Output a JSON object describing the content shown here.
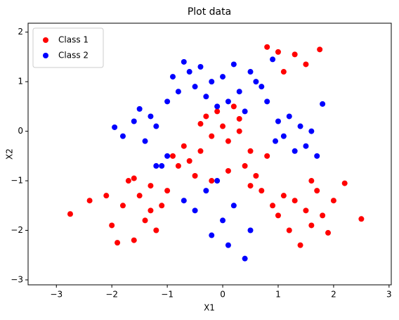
{
  "chart_data": {
    "type": "scatter",
    "title": "Plot data",
    "x_label": "X1",
    "y_label": "X2",
    "xlim": [
      -3.51,
      3.04
    ],
    "ylim": [
      -3.1,
      2.18
    ],
    "xticks": [
      {
        "value": -3,
        "label": "−3"
      },
      {
        "value": -2,
        "label": "−2"
      },
      {
        "value": -1,
        "label": "−1"
      },
      0,
      1,
      2,
      3
    ],
    "yticks": [
      {
        "value": -3,
        "label": "−3"
      },
      {
        "value": -2,
        "label": "−2"
      },
      {
        "value": -1,
        "label": "−1"
      },
      0,
      1,
      2
    ],
    "grid": false,
    "legend": "upper left",
    "series": [
      {
        "name": "Class 1",
        "color": "#ff0000",
        "x": [
          -2.75,
          -2.4,
          -2.1,
          -2.0,
          -1.9,
          -1.8,
          -1.7,
          -1.6,
          -1.5,
          -1.4,
          -1.3,
          -1.2,
          -1.1,
          -1.0,
          -1.6,
          -1.3,
          -0.9,
          -0.8,
          -0.7,
          -0.6,
          -0.5,
          -0.4,
          -0.3,
          -0.2,
          -0.1,
          0.0,
          0.1,
          0.2,
          0.3,
          0.4,
          0.5,
          0.6,
          0.7,
          0.8,
          0.9,
          1.0,
          1.1,
          1.2,
          1.3,
          1.4,
          1.5,
          1.6,
          1.7,
          1.8,
          1.9,
          2.0,
          2.2,
          2.5,
          1.3,
          1.0,
          0.8,
          1.1,
          1.5,
          1.75,
          -0.2,
          0.1,
          0.3,
          -0.4,
          0.5,
          1.6
        ],
        "values": [
          -1.67,
          -1.4,
          -1.3,
          -1.9,
          -2.25,
          -1.5,
          -1.0,
          -2.2,
          -1.3,
          -1.8,
          -1.1,
          -2.0,
          -1.5,
          -1.2,
          -0.95,
          -1.6,
          -0.5,
          -0.7,
          -0.3,
          -0.6,
          -0.9,
          -0.4,
          0.3,
          -0.1,
          0.4,
          0.1,
          -0.2,
          0.5,
          0.0,
          -0.7,
          -0.4,
          -0.9,
          -1.2,
          -0.5,
          -1.5,
          -1.7,
          -1.3,
          -2.0,
          -1.4,
          -2.3,
          -1.6,
          -1.9,
          -1.2,
          -1.7,
          -2.05,
          -1.4,
          -1.05,
          -1.77,
          1.55,
          1.6,
          1.7,
          1.2,
          1.35,
          1.65,
          -1.0,
          -0.8,
          0.25,
          0.15,
          -1.1,
          -1.0
        ]
      },
      {
        "name": "Class 2",
        "color": "#0000ff",
        "x": [
          -1.95,
          -1.8,
          -1.6,
          -1.5,
          -1.4,
          -1.3,
          -1.2,
          -1.1,
          -1.0,
          -0.9,
          -0.8,
          -0.7,
          -0.6,
          -0.5,
          -0.4,
          -0.3,
          -0.2,
          -0.1,
          0.0,
          0.1,
          0.2,
          0.3,
          0.4,
          0.5,
          0.6,
          0.7,
          0.8,
          0.9,
          1.0,
          1.1,
          1.2,
          1.3,
          1.4,
          1.5,
          1.6,
          1.7,
          1.8,
          -0.5,
          -0.3,
          -0.2,
          0.0,
          0.1,
          0.2,
          0.4,
          -0.1,
          -1.0,
          -1.2,
          -0.7,
          0.5,
          0.95
        ],
        "values": [
          0.08,
          -0.1,
          0.2,
          0.45,
          -0.2,
          0.3,
          0.1,
          -0.7,
          0.6,
          1.1,
          0.8,
          1.4,
          1.2,
          0.9,
          1.3,
          0.7,
          1.0,
          0.5,
          1.1,
          0.6,
          1.35,
          0.8,
          0.4,
          1.2,
          1.0,
          0.9,
          0.6,
          1.45,
          0.2,
          -0.1,
          0.3,
          -0.4,
          0.1,
          -0.3,
          0.0,
          -0.5,
          0.55,
          -1.6,
          -1.2,
          -2.1,
          -1.8,
          -2.3,
          -1.5,
          -2.57,
          -1.0,
          -0.5,
          -0.7,
          -1.4,
          -2.0,
          -0.2
        ]
      }
    ]
  }
}
